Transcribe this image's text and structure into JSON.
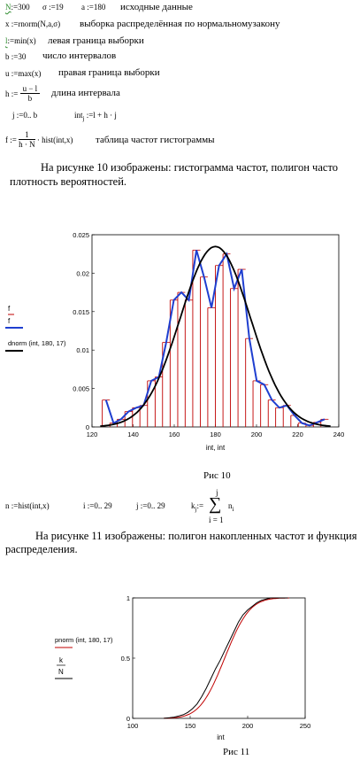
{
  "formulas": {
    "n_def": "N",
    "n_val": ":=300",
    "sigma_def": "σ :=19",
    "a_def": "a :=180",
    "comment_init": "исходные данные",
    "x_def": "x :=rnorm(N,a,σ)",
    "comment_x": "выборка распределённая по нормальномузакону",
    "l_def": "l",
    "l_val": ":=min(x)",
    "comment_l": "левая граница выборки",
    "b_def": "b :=30",
    "comment_b": "число интервалов",
    "u_def": "u :=max(x)",
    "comment_u": "правая граница выборки",
    "h_lhs": "h :=",
    "h_num": "u − l",
    "h_den": "b",
    "comment_h": "длина интервала",
    "j_def": "j :=0.. b",
    "int_def_a": "int",
    "int_sub": "j",
    "int_def_b": ":=l + h · j",
    "f_lhs": "f :=",
    "f_num": "1",
    "f_den": "h · N",
    "f_rest": "· hist(int,x)",
    "comment_f": "таблица частот гистограммы"
  },
  "paragraph1": "На рисунке 10 изображены: гистограмма частот, полигон часто",
  "paragraph1b": "плотность вероятностей.",
  "chart1": {
    "legend": {
      "f1": "f",
      "f2": "f",
      "dnorm": "dnorm (int, 180, 17)"
    },
    "xlabel": "int, int",
    "caption": "Рис 10",
    "colors": {
      "bar": "#c00000",
      "polygon": "#1f3fd0",
      "density": "#000000"
    }
  },
  "formulas2": {
    "n_hist": "n :=hist(int,x)",
    "i_range": "i :=0.. 29",
    "j_range": "j :=0.. 29",
    "k_lhs": "k",
    "k_sub": "j",
    "k_eq": ":=",
    "sum_sym": "∑",
    "sum_top": "j",
    "sum_bot": "i = 1",
    "sum_term": "n",
    "sum_term_sub": "i"
  },
  "paragraph2": "На рисунке 11 изображены: полигон накопленных частот и функция",
  "paragraph2b": "распределения.",
  "chart2": {
    "legend": {
      "pnorm": "pnorm (int, 180, 17)",
      "k_num": "k",
      "k_den": "N"
    },
    "xlabel": "int",
    "caption": "Рис 11",
    "colors": {
      "pnorm": "#c00000",
      "cum": "#000000"
    }
  },
  "chart_data": [
    {
      "type": "bar",
      "x": [
        125,
        128.7,
        132.3,
        136,
        139.7,
        143.3,
        147,
        150.7,
        154.3,
        158,
        161.7,
        165.3,
        169,
        172.7,
        176.3,
        180,
        183.7,
        187.3,
        191,
        194.7,
        198.3,
        202,
        205.7,
        209.3,
        213,
        216.7,
        220.3,
        224,
        227.7,
        231.3,
        235
      ],
      "values": [
        0.0035,
        0.0005,
        0.001,
        0.002,
        0.0025,
        0.0028,
        0.006,
        0.0065,
        0.011,
        0.0165,
        0.0175,
        0.0165,
        0.023,
        0.0195,
        0.0155,
        0.021,
        0.0225,
        0.018,
        0.0205,
        0.0115,
        0.006,
        0.0055,
        0.0035,
        0.0025,
        0.0028,
        0.0015,
        0.0005,
        0.0002,
        0.0006,
        0.001,
        0.0
      ],
      "series": [
        {
          "name": "f",
          "values": [
            0.0035,
            0.0005,
            0.001,
            0.002,
            0.0025,
            0.0028,
            0.006,
            0.0065,
            0.011,
            0.0165,
            0.0175,
            0.0165,
            0.023,
            0.0195,
            0.0155,
            0.021,
            0.0225,
            0.018,
            0.0205,
            0.0115,
            0.006,
            0.0055,
            0.0035,
            0.0025,
            0.0028,
            0.0015,
            0.0005,
            0.0002,
            0.0006,
            0.001,
            0.0
          ]
        },
        {
          "name": "dnorm (int, 180, 17)",
          "mu": 180,
          "sigma": 17
        }
      ],
      "xlabel": "int, int",
      "xlim": [
        120,
        240
      ],
      "ylim": [
        0,
        0.025
      ],
      "xticks": [
        "120",
        "140",
        "160",
        "180",
        "200",
        "220",
        "240"
      ],
      "yticks": [
        "0",
        "0.005",
        "0.01",
        "0.015",
        "0.02",
        "0.025"
      ]
    },
    {
      "type": "line",
      "series": [
        {
          "name": "pnorm (int, 180, 17)",
          "mu": 180,
          "sigma": 17
        },
        {
          "name": "k/N",
          "x": [
            127,
            132,
            136,
            140,
            144,
            148,
            152,
            156,
            160,
            164,
            168,
            172,
            176,
            180,
            184,
            188,
            192,
            196,
            200,
            204,
            208,
            212,
            216,
            220,
            224,
            228,
            232,
            235
          ],
          "values": [
            0.0,
            0.005,
            0.01,
            0.02,
            0.03,
            0.05,
            0.08,
            0.12,
            0.18,
            0.25,
            0.33,
            0.41,
            0.48,
            0.56,
            0.64,
            0.72,
            0.8,
            0.86,
            0.9,
            0.93,
            0.96,
            0.98,
            0.99,
            1.0,
            1.0,
            1.0,
            1.0,
            1.0
          ]
        }
      ],
      "xlabel": "int",
      "xlim": [
        100,
        250
      ],
      "ylim": [
        0,
        1
      ],
      "xticks": [
        "100",
        "150",
        "200",
        "250"
      ],
      "yticks": [
        "0",
        "0.5",
        "1"
      ]
    }
  ]
}
